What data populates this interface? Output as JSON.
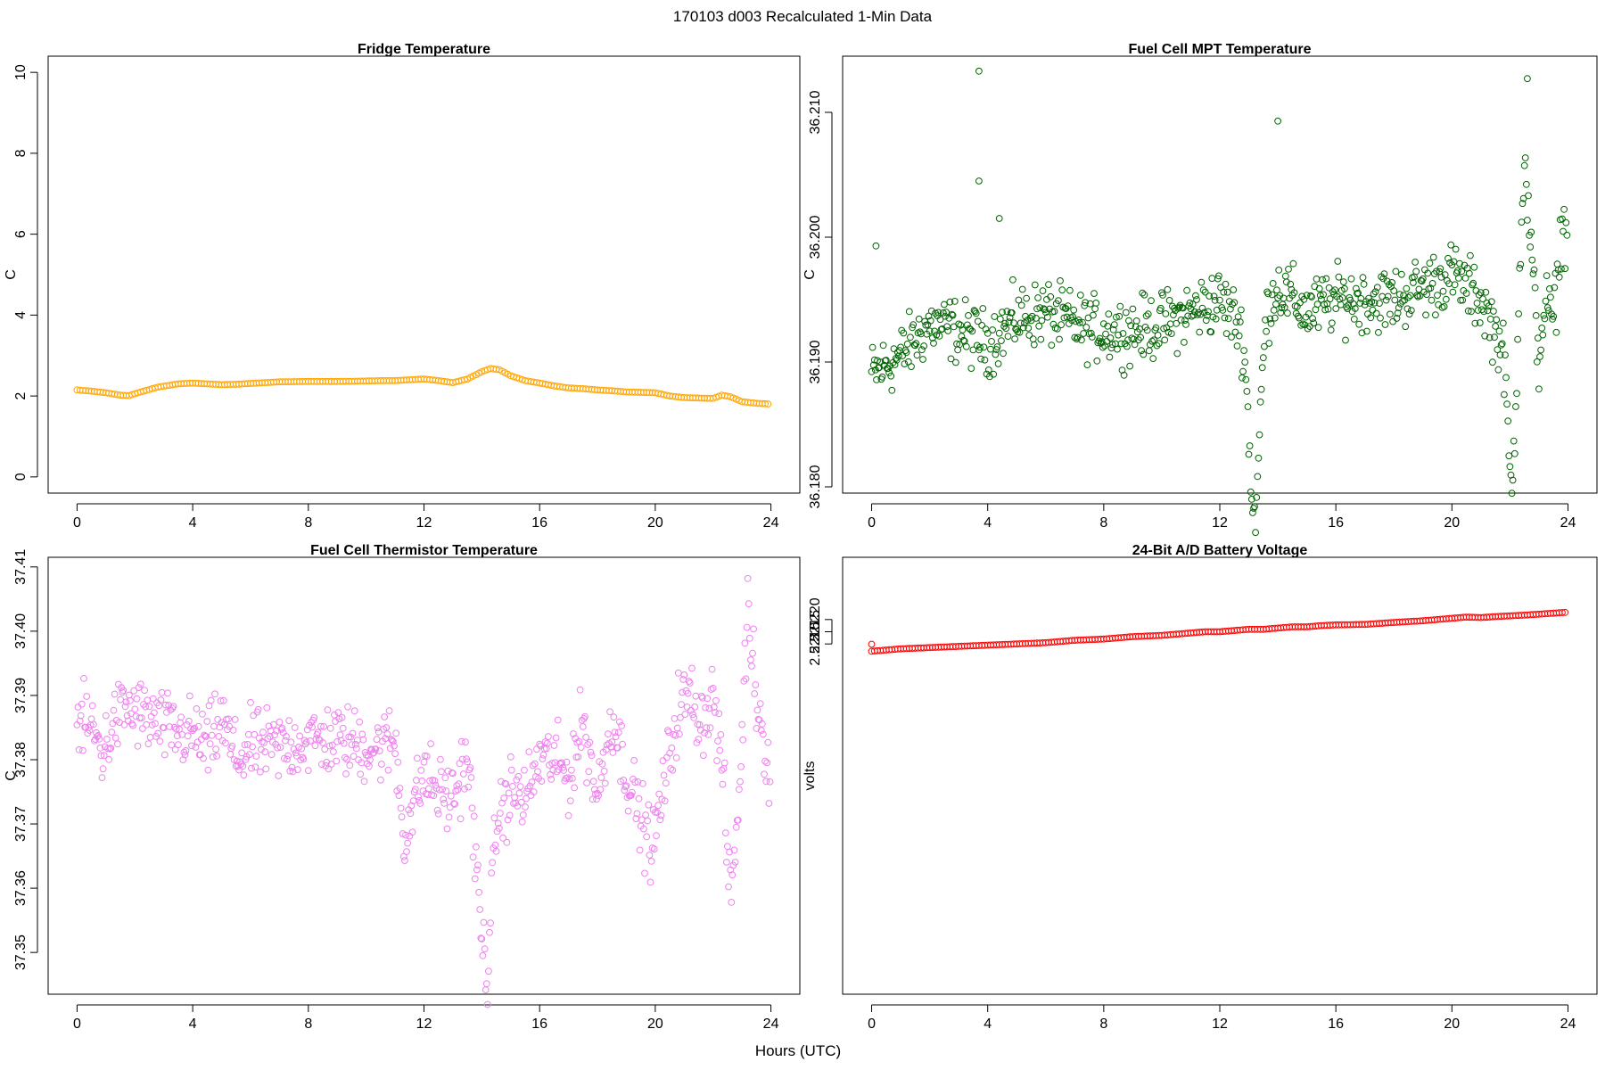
{
  "figure": {
    "title": "170103   d003   Recalculated 1-Min Data",
    "xlabel": "Hours (UTC)"
  },
  "chart_data": [
    {
      "type": "scatter",
      "title": "Fridge Temperature",
      "xlabel": "",
      "ylabel": "C",
      "xlim": [
        -1,
        25
      ],
      "ylim": [
        -0.4,
        10.4
      ],
      "xticks": [
        0,
        4,
        8,
        12,
        16,
        20,
        24
      ],
      "yticks": [
        0,
        2,
        4,
        6,
        8,
        10
      ],
      "ytick_labels": [
        "0",
        "2",
        "4",
        "6",
        "8",
        "10"
      ],
      "color": "#ffa500",
      "marker": "open-circle",
      "legend": "none",
      "grid": false,
      "density": 6,
      "x": [
        0,
        0.5,
        1,
        1.5,
        1.8,
        2.2,
        2.8,
        3.5,
        4,
        4.5,
        5,
        5.5,
        6,
        7,
        8,
        9,
        10,
        10.5,
        11,
        11.5,
        12,
        12.5,
        13,
        13.5,
        14,
        14.3,
        14.6,
        15,
        15.5,
        16,
        16.5,
        17,
        17.5,
        18,
        18.5,
        19,
        19.5,
        20,
        20.5,
        21,
        21.5,
        22,
        22.3,
        22.6,
        23,
        23.5,
        24
      ],
      "y": [
        2.15,
        2.12,
        2.08,
        2.02,
        2.01,
        2.1,
        2.22,
        2.3,
        2.32,
        2.3,
        2.28,
        2.29,
        2.31,
        2.35,
        2.36,
        2.36,
        2.37,
        2.38,
        2.38,
        2.4,
        2.42,
        2.38,
        2.33,
        2.42,
        2.6,
        2.68,
        2.65,
        2.5,
        2.38,
        2.32,
        2.25,
        2.2,
        2.18,
        2.15,
        2.13,
        2.1,
        2.09,
        2.08,
        2.0,
        1.96,
        1.95,
        1.94,
        2.02,
        1.98,
        1.86,
        1.82,
        1.8
      ]
    },
    {
      "type": "scatter",
      "title": "Fuel Cell MPT Temperature",
      "xlabel": "",
      "ylabel": "C",
      "xlim": [
        -1,
        25
      ],
      "ylim": [
        36.1795,
        36.2145
      ],
      "xticks": [
        0,
        4,
        8,
        12,
        16,
        20,
        24
      ],
      "yticks": [
        36.18,
        36.19,
        36.2,
        36.21
      ],
      "ytick_labels": [
        "36.180",
        "36.190",
        "36.200",
        "36.210"
      ],
      "color": "#006400",
      "marker": "open-circle",
      "legend": "none",
      "grid": false,
      "density": 2,
      "x": [
        0,
        1,
        2,
        3,
        4,
        5,
        6,
        7,
        8,
        9,
        10,
        11,
        12,
        13,
        14,
        15,
        16,
        17,
        18,
        19,
        20,
        21,
        22,
        22.5,
        23,
        23.5,
        24
      ],
      "y": [
        36.189,
        36.1905,
        36.193,
        36.1925,
        36.1915,
        36.1935,
        36.194,
        36.193,
        36.1925,
        36.1925,
        36.193,
        36.194,
        36.195,
        36.192,
        36.196,
        36.194,
        36.195,
        36.195,
        36.195,
        36.196,
        36.197,
        36.195,
        36.19,
        36.206,
        36.19,
        36.204,
        36.2
      ],
      "spread": 0.0025,
      "dips": [
        {
          "x": 13.2,
          "depth": 0.015,
          "width": 0.25
        },
        {
          "x": 22.1,
          "depth": 0.012,
          "width": 0.2
        },
        {
          "x": 23.5,
          "depth": 0.01,
          "width": 0.2
        }
      ],
      "outliers": [
        {
          "x": 3.7,
          "y": 36.2133
        },
        {
          "x": 3.7,
          "y": 36.2045
        },
        {
          "x": 14.0,
          "y": 36.2093
        },
        {
          "x": 0.15,
          "y": 36.1993
        },
        {
          "x": 4.4,
          "y": 36.2015
        },
        {
          "x": 22.6,
          "y": 36.2127
        }
      ]
    },
    {
      "type": "scatter",
      "title": "Fuel Cell Thermistor Temperature",
      "xlabel": "",
      "ylabel": "C",
      "xlim": [
        -1,
        25
      ],
      "ylim": [
        37.3435,
        37.4115
      ],
      "xticks": [
        0,
        4,
        8,
        12,
        16,
        20,
        24
      ],
      "yticks": [
        37.35,
        37.36,
        37.37,
        37.38,
        37.39,
        37.4,
        37.41
      ],
      "ytick_labels": [
        "37.35",
        "37.36",
        "37.37",
        "37.38",
        "37.39",
        "37.40",
        "37.41"
      ],
      "color": "#ee82ee",
      "marker": "open-circle",
      "legend": "none",
      "grid": false,
      "density": 2,
      "x": [
        0,
        0.5,
        0.9,
        1.3,
        1.7,
        2.2,
        3,
        3.5,
        4,
        4.5,
        5,
        5.5,
        6,
        7,
        8,
        9,
        10,
        10.5,
        11,
        11.3,
        12,
        12.5,
        13,
        13.5,
        14,
        14.2,
        14.5,
        15,
        15.5,
        16,
        16.5,
        17,
        17.5,
        18,
        18.5,
        19,
        19.5,
        19.9,
        20.3,
        20.8,
        21.2,
        21.6,
        22,
        22.3,
        22.6,
        22.9,
        23.2,
        23.5,
        24
      ],
      "y": [
        37.386,
        37.385,
        37.381,
        37.386,
        37.388,
        37.387,
        37.385,
        37.384,
        37.384,
        37.382,
        37.386,
        37.38,
        37.382,
        37.382,
        37.383,
        37.383,
        37.382,
        37.382,
        37.383,
        37.368,
        37.378,
        37.375,
        37.374,
        37.381,
        37.352,
        37.347,
        37.37,
        37.375,
        37.374,
        37.38,
        37.38,
        37.377,
        37.386,
        37.374,
        37.387,
        37.378,
        37.371,
        37.366,
        37.376,
        37.388,
        37.39,
        37.386,
        37.39,
        37.38,
        37.358,
        37.374,
        37.404,
        37.39,
        37.377
      ],
      "spread": 0.0055
    },
    {
      "type": "scatter",
      "title": "24-Bit A/D Battery Voltage",
      "xlabel": "",
      "ylabel": "volts",
      "xlim": [
        -1,
        25
      ],
      "ylim": [
        2.50665,
        2.52455
      ],
      "xticks": [
        0,
        4,
        8,
        12,
        16,
        20,
        24
      ],
      "yticks": [
        2.521,
        2.5215,
        2.522
      ],
      "ytick_labels": [
        "2.5210",
        "2.5215",
        "2.5220"
      ],
      "color": "#ff0000",
      "marker": "open-circle",
      "legend": "none",
      "grid": false,
      "density": 6,
      "x": [
        0,
        1,
        2,
        3,
        4,
        5,
        6,
        7,
        8,
        9,
        10,
        10.5,
        11,
        11.5,
        12,
        12.5,
        13,
        13.5,
        14,
        14.5,
        15,
        15.5,
        16,
        17,
        18,
        19,
        20,
        20.5,
        21,
        21.5,
        22,
        22.5,
        23,
        23.5,
        24
      ],
      "y": [
        2.5207,
        2.5208,
        2.52085,
        2.5209,
        2.52095,
        2.521,
        2.52105,
        2.52115,
        2.5212,
        2.5213,
        2.52135,
        2.5214,
        2.52145,
        2.5215,
        2.5215,
        2.52155,
        2.5216,
        2.5216,
        2.52165,
        2.5217,
        2.5217,
        2.52175,
        2.52178,
        2.5218,
        2.52188,
        2.52195,
        2.52205,
        2.5221,
        2.52208,
        2.52212,
        2.52215,
        2.52218,
        2.52222,
        2.52226,
        2.5223
      ],
      "outliers": [
        {
          "x": 0,
          "y": 2.52099
        }
      ]
    }
  ]
}
